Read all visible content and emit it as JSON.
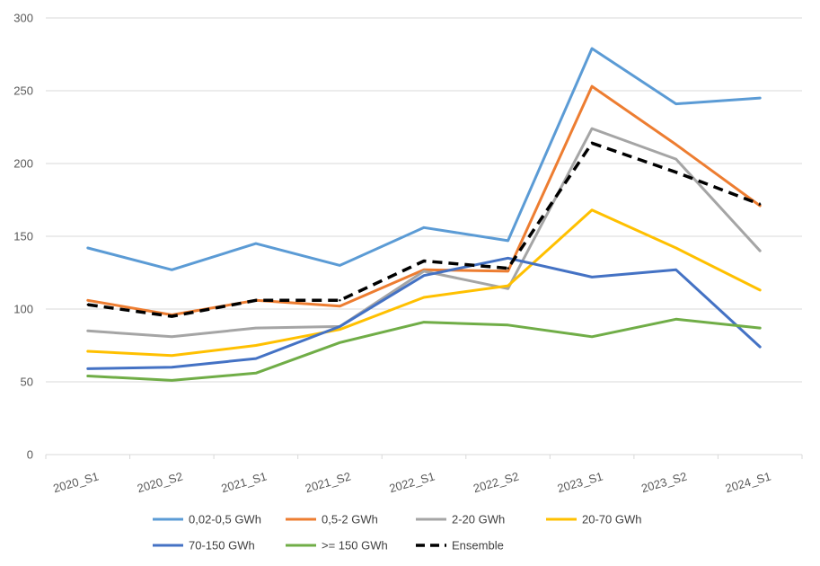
{
  "chart_data": {
    "type": "line",
    "categories": [
      "2020_S1",
      "2020_S2",
      "2021_S1",
      "2021_S2",
      "2022_S1",
      "2022_S2",
      "2023_S1",
      "2023_S2",
      "2024_S1"
    ],
    "ylim": [
      0,
      300
    ],
    "yticks": [
      0,
      50,
      100,
      150,
      200,
      250,
      300
    ],
    "grid": true,
    "legend_position": "bottom",
    "series": [
      {
        "name": "0,02-0,5 GWh",
        "color": "#5B9BD5",
        "dashed": false,
        "values": [
          142,
          127,
          145,
          130,
          156,
          147,
          279,
          241,
          245
        ]
      },
      {
        "name": "0,5-2 GWh",
        "color": "#ED7D31",
        "dashed": false,
        "values": [
          106,
          96,
          106,
          102,
          127,
          126,
          253,
          213,
          171
        ]
      },
      {
        "name": "2-20 GWh",
        "color": "#A5A5A5",
        "dashed": false,
        "values": [
          85,
          81,
          87,
          88,
          126,
          114,
          224,
          203,
          140
        ]
      },
      {
        "name": "20-70 GWh",
        "color": "#FFC000",
        "dashed": false,
        "values": [
          71,
          68,
          75,
          86,
          108,
          116,
          168,
          142,
          113
        ]
      },
      {
        "name": "70-150 GWh",
        "color": "#4472C4",
        "dashed": false,
        "values": [
          59,
          60,
          66,
          88,
          123,
          135,
          122,
          127,
          74
        ]
      },
      {
        "name": ">= 150 GWh",
        "color": "#70AD47",
        "dashed": false,
        "values": [
          54,
          51,
          56,
          77,
          91,
          89,
          81,
          93,
          87
        ]
      },
      {
        "name": "Ensemble",
        "color": "#000000",
        "dashed": true,
        "values": [
          103,
          95,
          106,
          106,
          133,
          128,
          214,
          194,
          172
        ]
      }
    ]
  }
}
